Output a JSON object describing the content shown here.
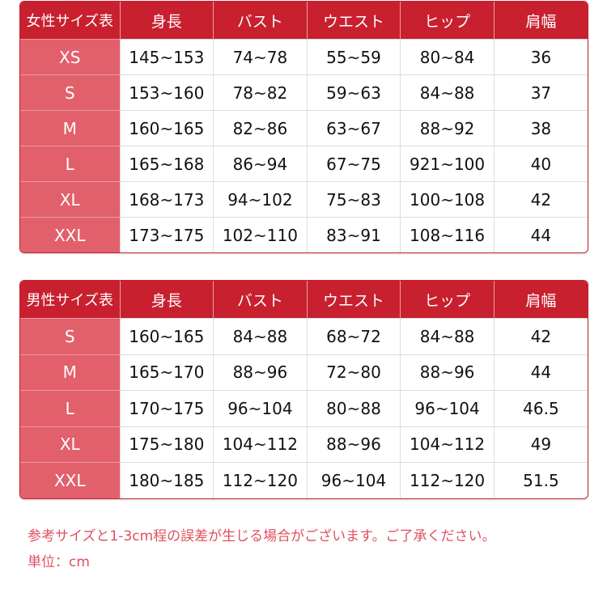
{
  "tables": [
    {
      "headers": [
        "女性サイズ表",
        "身長",
        "バスト",
        "ウエスト",
        "ヒップ",
        "肩幅"
      ],
      "rows": [
        [
          "XS",
          "145~153",
          "74~78",
          "55~59",
          "80~84",
          "36"
        ],
        [
          "S",
          "153~160",
          "78~82",
          "59~63",
          "84~88",
          "37"
        ],
        [
          "M",
          "160~165",
          "82~86",
          "63~67",
          "88~92",
          "38"
        ],
        [
          "L",
          "165~168",
          "86~94",
          "67~75",
          "921~100",
          "40"
        ],
        [
          "XL",
          "168~173",
          "94~102",
          "75~83",
          "100~108",
          "42"
        ],
        [
          "XXL",
          "173~175",
          "102~110",
          "83~91",
          "108~116",
          "44"
        ]
      ]
    },
    {
      "headers": [
        "男性サイズ表",
        "身長",
        "バスト",
        "ウエスト",
        "ヒップ",
        "肩幅"
      ],
      "rows": [
        [
          "S",
          "160~165",
          "84~88",
          "68~72",
          "84~88",
          "42"
        ],
        [
          "M",
          "165~170",
          "88~96",
          "72~80",
          "88~96",
          "44"
        ],
        [
          "L",
          "170~175",
          "96~104",
          "80~88",
          "96~104",
          "46.5"
        ],
        [
          "XL",
          "175~180",
          "104~112",
          "88~96",
          "104~112",
          "49"
        ],
        [
          "XXL",
          "180~185",
          "112~120",
          "96~104",
          "112~120",
          "51.5"
        ]
      ]
    }
  ],
  "notes": {
    "disclaimer": "参考サイズと1-3cm程の誤差が生じる場合がございます。ご了承ください。",
    "unit": "単位：cm"
  },
  "colors": {
    "header": "#c8202f",
    "label_column": "#e2606c",
    "note_text": "#e0505e"
  }
}
